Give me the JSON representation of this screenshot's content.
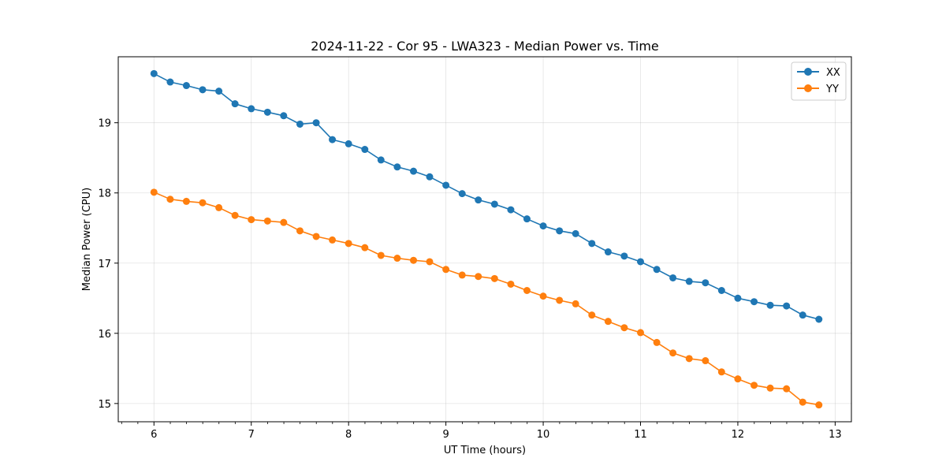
{
  "chart_data": {
    "type": "line",
    "title": "2024-11-22 - Cor 95 - LWA323 - Median Power vs. Time",
    "xlabel": "UT Time (hours)",
    "ylabel": "Median Power (CPU)",
    "xlim": [
      5.633,
      13.167
    ],
    "ylim": [
      14.74,
      19.94
    ],
    "xticks": [
      6,
      7,
      8,
      9,
      10,
      11,
      12,
      13
    ],
    "yticks": [
      15,
      16,
      17,
      18,
      19
    ],
    "x_minor_step": 0.1667,
    "grid": true,
    "legend_position": "top-right",
    "x": [
      6.0,
      6.167,
      6.333,
      6.5,
      6.667,
      6.833,
      7.0,
      7.167,
      7.333,
      7.5,
      7.667,
      7.833,
      8.0,
      8.167,
      8.333,
      8.5,
      8.667,
      8.833,
      9.0,
      9.167,
      9.333,
      9.5,
      9.667,
      9.833,
      10.0,
      10.167,
      10.333,
      10.5,
      10.667,
      10.833,
      11.0,
      11.167,
      11.333,
      11.5,
      11.667,
      11.833,
      12.0,
      12.167,
      12.333,
      12.5,
      12.667,
      12.833
    ],
    "series": [
      {
        "name": "XX",
        "color": "#1f77b4",
        "values": [
          19.7,
          19.58,
          19.53,
          19.47,
          19.45,
          19.27,
          19.2,
          19.15,
          19.1,
          18.98,
          19.0,
          18.76,
          18.7,
          18.62,
          18.47,
          18.37,
          18.31,
          18.23,
          18.11,
          17.99,
          17.9,
          17.84,
          17.76,
          17.63,
          17.53,
          17.46,
          17.42,
          17.28,
          17.16,
          17.1,
          17.02,
          16.91,
          16.79,
          16.74,
          16.72,
          16.61,
          16.5,
          16.45,
          16.4,
          16.39,
          16.26,
          16.2
        ]
      },
      {
        "name": "YY",
        "color": "#ff7f0e",
        "values": [
          18.01,
          17.91,
          17.88,
          17.86,
          17.79,
          17.68,
          17.62,
          17.6,
          17.58,
          17.46,
          17.38,
          17.33,
          17.28,
          17.22,
          17.11,
          17.07,
          17.04,
          17.02,
          16.91,
          16.83,
          16.81,
          16.78,
          16.7,
          16.61,
          16.53,
          16.47,
          16.42,
          16.26,
          16.17,
          16.08,
          16.01,
          15.87,
          15.72,
          15.64,
          15.61,
          15.45,
          15.35,
          15.26,
          15.22,
          15.21,
          15.02,
          14.98
        ]
      }
    ]
  }
}
